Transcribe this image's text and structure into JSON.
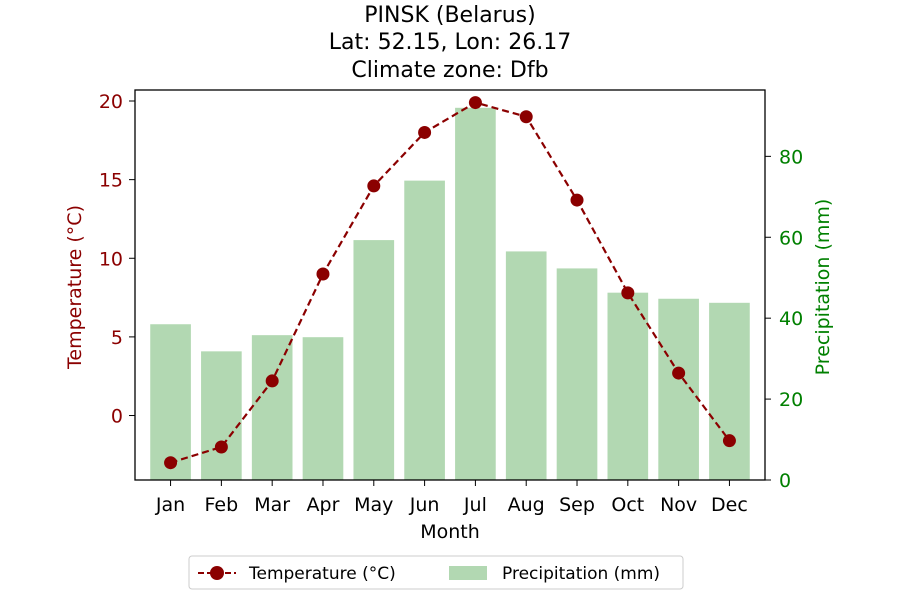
{
  "chart_data": {
    "type": "bar+line",
    "title_lines": [
      "PINSK (Belarus)",
      "Lat: 52.15, Lon: 26.17",
      "Climate zone: Dfb"
    ],
    "xlabel": "Month",
    "ylabel_left": "Temperature (°C)",
    "ylabel_right": "Precipitation (mm)",
    "categories": [
      "Jan",
      "Feb",
      "Mar",
      "Apr",
      "May",
      "Jun",
      "Jul",
      "Aug",
      "Sep",
      "Oct",
      "Nov",
      "Dec"
    ],
    "temperature": {
      "name": "Temperature (°C)",
      "values": [
        -3.0,
        -2.0,
        2.2,
        9.0,
        14.6,
        18.0,
        19.9,
        19.0,
        13.7,
        7.8,
        2.7,
        -1.6
      ],
      "color": "#8b0000"
    },
    "precipitation": {
      "name": "Precipitation (mm)",
      "values": [
        38.5,
        31.8,
        35.8,
        35.3,
        59.3,
        74.0,
        92.0,
        56.5,
        52.3,
        46.3,
        44.8,
        43.8
      ],
      "color": "#b2d8b2"
    },
    "ylim_left": [
      -4.1,
      20.7
    ],
    "ylim_right": [
      0,
      96.4
    ],
    "yticks_left": [
      0,
      5,
      10,
      15,
      20
    ],
    "yticks_right": [
      0,
      20,
      40,
      60,
      80
    ],
    "left_axis_color": "#8b0000",
    "right_axis_color": "#008000",
    "legend_position": "bottom-center"
  }
}
